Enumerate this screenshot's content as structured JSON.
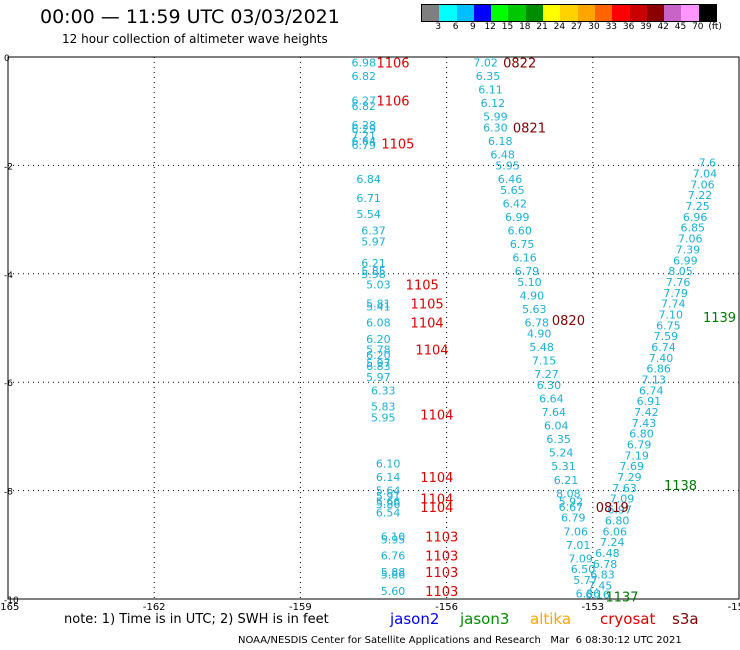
{
  "header": {
    "title": "00:00 — 11:59 UTC 03/03/2021",
    "subtitle": "12 hour collection of altimeter wave heights"
  },
  "colorbar": {
    "colors": [
      "#7f7f7f",
      "#00ffff",
      "#00bfff",
      "#0000ff",
      "#00ff00",
      "#00c800",
      "#008c00",
      "#ffff00",
      "#ffd200",
      "#ffa500",
      "#ff6400",
      "#ff0000",
      "#c80000",
      "#8b0000",
      "#c864c8",
      "#ff96ff",
      "#000000"
    ],
    "labels": [
      "3",
      "6",
      "9",
      "12",
      "15",
      "18",
      "21",
      "24",
      "27",
      "30",
      "33",
      "36",
      "39",
      "42",
      "45",
      "70",
      "(ft)"
    ]
  },
  "map": {
    "x_ticks": [
      "-165",
      "-162",
      "-159",
      "-156",
      "-153",
      "-150"
    ],
    "y_ticks": [
      "0",
      "-2",
      "-4",
      "-6",
      "-8",
      "-10"
    ],
    "x_range": [
      -165,
      -150
    ],
    "y_range": [
      -10,
      0
    ],
    "point_color": "#1bb1d6",
    "time_color_cryosat": "#e00000",
    "time_color_jason2": "#800000",
    "time_color_jason3": "#007a00",
    "tracks": [
      {
        "label": "1106",
        "mission": "cryosat",
        "lon": -157.1,
        "lat": -0.1
      },
      {
        "label": "1106",
        "mission": "cryosat",
        "lon": -157.1,
        "lat": -0.8
      },
      {
        "label": "1105",
        "mission": "cryosat",
        "lon": -157.0,
        "lat": -1.6
      },
      {
        "label": "1105",
        "mission": "cryosat",
        "lon": -156.5,
        "lat": -4.2
      },
      {
        "label": "1105",
        "mission": "cryosat",
        "lon": -156.4,
        "lat": -4.55
      },
      {
        "label": "1104",
        "mission": "cryosat",
        "lon": -156.4,
        "lat": -4.9
      },
      {
        "label": "1104",
        "mission": "cryosat",
        "lon": -156.3,
        "lat": -5.4
      },
      {
        "label": "1104",
        "mission": "cryosat",
        "lon": -156.2,
        "lat": -6.6
      },
      {
        "label": "1104",
        "mission": "cryosat",
        "lon": -156.2,
        "lat": -7.75
      },
      {
        "label": "1104",
        "mission": "cryosat",
        "lon": -156.2,
        "lat": -8.15
      },
      {
        "label": "1104",
        "mission": "cryosat",
        "lon": -156.2,
        "lat": -8.3
      },
      {
        "label": "1103",
        "mission": "cryosat",
        "lon": -156.1,
        "lat": -8.85
      },
      {
        "label": "1103",
        "mission": "cryosat",
        "lon": -156.1,
        "lat": -9.2
      },
      {
        "label": "1103",
        "mission": "cryosat",
        "lon": -156.1,
        "lat": -9.5
      },
      {
        "label": "1103",
        "mission": "cryosat",
        "lon": -156.1,
        "lat": -9.85
      },
      {
        "label": "0822",
        "mission": "jason2",
        "lon": -154.5,
        "lat": -0.1
      },
      {
        "label": "0821",
        "mission": "jason2",
        "lon": -154.3,
        "lat": -1.3
      },
      {
        "label": "0820",
        "mission": "jason2",
        "lon": -153.5,
        "lat": -4.85
      },
      {
        "label": "0819",
        "mission": "jason2",
        "lon": -152.6,
        "lat": -8.3
      },
      {
        "label": "1139",
        "mission": "jason3",
        "lon": -150.4,
        "lat": -4.8
      },
      {
        "label": "1138",
        "mission": "jason3",
        "lon": -151.2,
        "lat": -7.9
      },
      {
        "label": "1137",
        "mission": "jason3",
        "lon": -152.4,
        "lat": -9.95
      }
    ],
    "points": [
      {
        "v": "6.98",
        "lon": -157.7,
        "lat": -0.1
      },
      {
        "v": "6.82",
        "lon": -157.7,
        "lat": -0.35
      },
      {
        "v": "6.27",
        "lon": -157.7,
        "lat": -0.8
      },
      {
        "v": "6.82",
        "lon": -157.7,
        "lat": -0.9
      },
      {
        "v": "6.28",
        "lon": -157.7,
        "lat": -1.25
      },
      {
        "v": "6.29",
        "lon": -157.7,
        "lat": -1.33
      },
      {
        "v": "7.21",
        "lon": -157.7,
        "lat": -1.45
      },
      {
        "v": "6.64",
        "lon": -157.7,
        "lat": -1.55
      },
      {
        "v": "6.79",
        "lon": -157.7,
        "lat": -1.62
      },
      {
        "v": "6.84",
        "lon": -157.6,
        "lat": -2.25
      },
      {
        "v": "6.71",
        "lon": -157.6,
        "lat": -2.6
      },
      {
        "v": "5.54",
        "lon": -157.6,
        "lat": -2.9
      },
      {
        "v": "6.37",
        "lon": -157.5,
        "lat": -3.2
      },
      {
        "v": "5.97",
        "lon": -157.5,
        "lat": -3.4
      },
      {
        "v": "6.21",
        "lon": -157.5,
        "lat": -3.8
      },
      {
        "v": "5.85",
        "lon": -157.5,
        "lat": -3.95
      },
      {
        "v": "5.58",
        "lon": -157.5,
        "lat": -4.0
      },
      {
        "v": "5.03",
        "lon": -157.4,
        "lat": -4.2
      },
      {
        "v": "5.81",
        "lon": -157.4,
        "lat": -4.55
      },
      {
        "v": "5.41",
        "lon": -157.4,
        "lat": -4.6
      },
      {
        "v": "6.08",
        "lon": -157.4,
        "lat": -4.9
      },
      {
        "v": "6.20",
        "lon": -157.4,
        "lat": -5.2
      },
      {
        "v": "5.78",
        "lon": -157.4,
        "lat": -5.4
      },
      {
        "v": "6.20",
        "lon": -157.4,
        "lat": -5.5
      },
      {
        "v": "5.97",
        "lon": -157.4,
        "lat": -5.65
      },
      {
        "v": "6.83",
        "lon": -157.4,
        "lat": -5.7
      },
      {
        "v": "5.97",
        "lon": -157.4,
        "lat": -5.9
      },
      {
        "v": "6.33",
        "lon": -157.3,
        "lat": -6.15
      },
      {
        "v": "5.83",
        "lon": -157.3,
        "lat": -6.45
      },
      {
        "v": "5.95",
        "lon": -157.3,
        "lat": -6.65
      },
      {
        "v": "6.10",
        "lon": -157.2,
        "lat": -7.5
      },
      {
        "v": "6.14",
        "lon": -157.2,
        "lat": -7.75
      },
      {
        "v": "5.64",
        "lon": -157.2,
        "lat": -8.0
      },
      {
        "v": "5.91",
        "lon": -157.2,
        "lat": -8.1
      },
      {
        "v": "5.66",
        "lon": -157.2,
        "lat": -8.2
      },
      {
        "v": "5.86",
        "lon": -157.2,
        "lat": -8.25
      },
      {
        "v": "6.54",
        "lon": -157.2,
        "lat": -8.4
      },
      {
        "v": "6.10",
        "lon": -157.1,
        "lat": -8.85
      },
      {
        "v": "5.95",
        "lon": -157.1,
        "lat": -8.9
      },
      {
        "v": "6.76",
        "lon": -157.1,
        "lat": -9.2
      },
      {
        "v": "5.88",
        "lon": -157.1,
        "lat": -9.5
      },
      {
        "v": "5.86",
        "lon": -157.1,
        "lat": -9.55
      },
      {
        "v": "5.60",
        "lon": -157.1,
        "lat": -9.85
      },
      {
        "v": "7.02",
        "lon": -155.2,
        "lat": -0.1
      },
      {
        "v": "6.35",
        "lon": -155.15,
        "lat": -0.35
      },
      {
        "v": "6.11",
        "lon": -155.1,
        "lat": -0.6
      },
      {
        "v": "6.12",
        "lon": -155.05,
        "lat": -0.85
      },
      {
        "v": "5.99",
        "lon": -155.0,
        "lat": -1.1
      },
      {
        "v": "6.30",
        "lon": -155.0,
        "lat": -1.3
      },
      {
        "v": "6.18",
        "lon": -154.9,
        "lat": -1.55
      },
      {
        "v": "6.48",
        "lon": -154.85,
        "lat": -1.8
      },
      {
        "v": "5.95",
        "lon": -154.75,
        "lat": -2.0
      },
      {
        "v": "6.46",
        "lon": -154.7,
        "lat": -2.25
      },
      {
        "v": "5.65",
        "lon": -154.65,
        "lat": -2.45
      },
      {
        "v": "6.42",
        "lon": -154.6,
        "lat": -2.7
      },
      {
        "v": "6.99",
        "lon": -154.55,
        "lat": -2.95
      },
      {
        "v": "6.60",
        "lon": -154.5,
        "lat": -3.2
      },
      {
        "v": "6.75",
        "lon": -154.45,
        "lat": -3.45
      },
      {
        "v": "6.16",
        "lon": -154.4,
        "lat": -3.7
      },
      {
        "v": "6.79",
        "lon": -154.35,
        "lat": -3.95
      },
      {
        "v": "5.10",
        "lon": -154.3,
        "lat": -4.15
      },
      {
        "v": "4.90",
        "lon": -154.25,
        "lat": -4.4
      },
      {
        "v": "5.63",
        "lon": -154.2,
        "lat": -4.65
      },
      {
        "v": "6.78",
        "lon": -154.15,
        "lat": -4.9
      },
      {
        "v": "4.90",
        "lon": -154.1,
        "lat": -5.1
      },
      {
        "v": "5.48",
        "lon": -154.05,
        "lat": -5.35
      },
      {
        "v": "7.15",
        "lon": -154.0,
        "lat": -5.6
      },
      {
        "v": "7.27",
        "lon": -153.95,
        "lat": -5.85
      },
      {
        "v": "6.30",
        "lon": -153.9,
        "lat": -6.05
      },
      {
        "v": "6.64",
        "lon": -153.85,
        "lat": -6.3
      },
      {
        "v": "7.64",
        "lon": -153.8,
        "lat": -6.55
      },
      {
        "v": "6.04",
        "lon": -153.75,
        "lat": -6.8
      },
      {
        "v": "6.35",
        "lon": -153.7,
        "lat": -7.05
      },
      {
        "v": "5.24",
        "lon": -153.65,
        "lat": -7.3
      },
      {
        "v": "5.31",
        "lon": -153.6,
        "lat": -7.55
      },
      {
        "v": "6.21",
        "lon": -153.55,
        "lat": -7.8
      },
      {
        "v": "8.08",
        "lon": -153.5,
        "lat": -8.05
      },
      {
        "v": "5.92",
        "lon": -153.45,
        "lat": -8.2
      },
      {
        "v": "6.67",
        "lon": -153.45,
        "lat": -8.3
      },
      {
        "v": "6.79",
        "lon": -153.4,
        "lat": -8.5
      },
      {
        "v": "7.06",
        "lon": -153.35,
        "lat": -8.75
      },
      {
        "v": "7.01",
        "lon": -153.3,
        "lat": -9.0
      },
      {
        "v": "7.09",
        "lon": -153.25,
        "lat": -9.25
      },
      {
        "v": "6.50",
        "lon": -153.2,
        "lat": -9.45
      },
      {
        "v": "5.77",
        "lon": -153.15,
        "lat": -9.65
      },
      {
        "v": "6.86",
        "lon": -153.1,
        "lat": -9.9
      },
      {
        "v": "6.16",
        "lon": -152.9,
        "lat": -9.92
      },
      {
        "v": "7.45",
        "lon": -152.85,
        "lat": -9.75
      },
      {
        "v": "6.83",
        "lon": -152.8,
        "lat": -9.55
      },
      {
        "v": "6.78",
        "lon": -152.75,
        "lat": -9.35
      },
      {
        "v": "6.48",
        "lon": -152.7,
        "lat": -9.15
      },
      {
        "v": "7.24",
        "lon": -152.6,
        "lat": -8.95
      },
      {
        "v": "6.06",
        "lon": -152.55,
        "lat": -8.75
      },
      {
        "v": "6.80",
        "lon": -152.5,
        "lat": -8.55
      },
      {
        "v": "6.97",
        "lon": -152.45,
        "lat": -8.35
      },
      {
        "v": "7.09",
        "lon": -152.4,
        "lat": -8.15
      },
      {
        "v": "7.63",
        "lon": -152.35,
        "lat": -7.95
      },
      {
        "v": "7.29",
        "lon": -152.25,
        "lat": -7.75
      },
      {
        "v": "7.69",
        "lon": -152.2,
        "lat": -7.55
      },
      {
        "v": "7.19",
        "lon": -152.1,
        "lat": -7.35
      },
      {
        "v": "6.79",
        "lon": -152.05,
        "lat": -7.15
      },
      {
        "v": "6.80",
        "lon": -152.0,
        "lat": -6.95
      },
      {
        "v": "7.43",
        "lon": -151.95,
        "lat": -6.75
      },
      {
        "v": "7.42",
        "lon": -151.9,
        "lat": -6.55
      },
      {
        "v": "6.91",
        "lon": -151.85,
        "lat": -6.35
      },
      {
        "v": "6.74",
        "lon": -151.8,
        "lat": -6.15
      },
      {
        "v": "7.13",
        "lon": -151.75,
        "lat": -5.95
      },
      {
        "v": "6.86",
        "lon": -151.65,
        "lat": -5.75
      },
      {
        "v": "7.40",
        "lon": -151.6,
        "lat": -5.55
      },
      {
        "v": "6.74",
        "lon": -151.55,
        "lat": -5.35
      },
      {
        "v": "7.59",
        "lon": -151.5,
        "lat": -5.15
      },
      {
        "v": "6.75",
        "lon": -151.45,
        "lat": -4.95
      },
      {
        "v": "7.10",
        "lon": -151.4,
        "lat": -4.75
      },
      {
        "v": "7.74",
        "lon": -151.35,
        "lat": -4.55
      },
      {
        "v": "7.79",
        "lon": -151.3,
        "lat": -4.35
      },
      {
        "v": "7.76",
        "lon": -151.25,
        "lat": -4.15
      },
      {
        "v": "8.05",
        "lon": -151.2,
        "lat": -3.95
      },
      {
        "v": "6.99",
        "lon": -151.1,
        "lat": -3.75
      },
      {
        "v": "7.39",
        "lon": -151.05,
        "lat": -3.55
      },
      {
        "v": "7.06",
        "lon": -151.0,
        "lat": -3.35
      },
      {
        "v": "6.85",
        "lon": -150.95,
        "lat": -3.15
      },
      {
        "v": "6.96",
        "lon": -150.9,
        "lat": -2.95
      },
      {
        "v": "7.25",
        "lon": -150.85,
        "lat": -2.75
      },
      {
        "v": "7.22",
        "lon": -150.8,
        "lat": -2.55
      },
      {
        "v": "7.06",
        "lon": -150.75,
        "lat": -2.35
      },
      {
        "v": "7.04",
        "lon": -150.7,
        "lat": -2.15
      },
      {
        "v": "7.6",
        "lon": -150.65,
        "lat": -1.95
      }
    ]
  },
  "footer": {
    "note": "note:  1) Time is in UTC;  2) SWH is in feet",
    "missions": [
      {
        "name": "jason2",
        "color": "#0000ff"
      },
      {
        "name": "jason3",
        "color": "#008c00"
      },
      {
        "name": "altika",
        "color": "#ffa500"
      },
      {
        "name": "cryosat",
        "color": "#e00000"
      },
      {
        "name": "s3a",
        "color": "#800000"
      }
    ],
    "credit": "NOAA/NESDIS Center for Satellite Applications and Research   Mar  6 08:30:12 UTC 2021"
  }
}
